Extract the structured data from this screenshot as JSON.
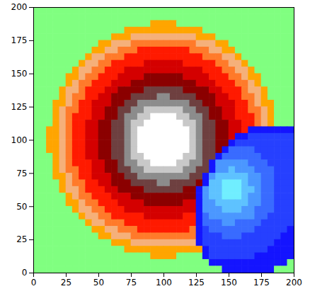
{
  "chart_data": {
    "type": "heatmap",
    "xlim": [
      0,
      200
    ],
    "ylim": [
      0,
      200
    ],
    "xticks": [
      0,
      25,
      50,
      75,
      100,
      125,
      150,
      175,
      200
    ],
    "yticks": [
      0,
      25,
      50,
      75,
      100,
      125,
      150,
      175,
      200
    ],
    "cells": [
      [
        0,
        0,
        0,
        0,
        0,
        0,
        0,
        0,
        0,
        0,
        0,
        0,
        0,
        0,
        0,
        0,
        0,
        0,
        0,
        0,
        0,
        0,
        0,
        0,
        0,
        0,
        0,
        0,
        0,
        0,
        0,
        0,
        0,
        0,
        0,
        0,
        0,
        0,
        0,
        0
      ],
      [
        0,
        0,
        0,
        0,
        0,
        0,
        0,
        0,
        0,
        0,
        0,
        0,
        0,
        0,
        0,
        0,
        0,
        0,
        0,
        0,
        0,
        0,
        0,
        0,
        0,
        0,
        0,
        0,
        0,
        0,
        0,
        0,
        0,
        0,
        0,
        0,
        0,
        0,
        0,
        0
      ],
      [
        0,
        0,
        0,
        0,
        0,
        0,
        0,
        0,
        0,
        0,
        0,
        0,
        0,
        0,
        0,
        0,
        0,
        0,
        1,
        1,
        1,
        1,
        0,
        0,
        0,
        0,
        0,
        0,
        0,
        0,
        0,
        0,
        0,
        0,
        0,
        0,
        0,
        0,
        0,
        0
      ],
      [
        0,
        0,
        0,
        0,
        0,
        0,
        0,
        0,
        0,
        0,
        0,
        0,
        0,
        0,
        1,
        1,
        1,
        1,
        1,
        1,
        1,
        1,
        1,
        1,
        1,
        1,
        0,
        0,
        0,
        0,
        0,
        0,
        0,
        0,
        0,
        0,
        0,
        0,
        0,
        0
      ],
      [
        0,
        0,
        0,
        0,
        0,
        0,
        0,
        0,
        0,
        0,
        0,
        0,
        1,
        1,
        1,
        2,
        2,
        2,
        2,
        2,
        2,
        2,
        2,
        2,
        2,
        1,
        1,
        1,
        0,
        0,
        0,
        0,
        0,
        0,
        0,
        0,
        0,
        0,
        0,
        0
      ],
      [
        0,
        0,
        0,
        0,
        0,
        0,
        0,
        0,
        0,
        0,
        1,
        1,
        2,
        2,
        2,
        3,
        3,
        3,
        3,
        3,
        3,
        3,
        3,
        3,
        3,
        2,
        2,
        2,
        1,
        1,
        0,
        0,
        0,
        0,
        0,
        0,
        0,
        0,
        0,
        0
      ],
      [
        0,
        0,
        0,
        0,
        0,
        0,
        0,
        0,
        0,
        1,
        1,
        2,
        2,
        3,
        3,
        3,
        4,
        4,
        4,
        4,
        4,
        4,
        4,
        4,
        3,
        3,
        3,
        2,
        2,
        1,
        1,
        0,
        0,
        0,
        0,
        0,
        0,
        0,
        0,
        0
      ],
      [
        0,
        0,
        0,
        0,
        0,
        0,
        0,
        0,
        1,
        2,
        2,
        3,
        3,
        3,
        4,
        4,
        4,
        4,
        4,
        4,
        4,
        4,
        4,
        4,
        4,
        4,
        3,
        3,
        3,
        2,
        2,
        1,
        0,
        0,
        0,
        0,
        0,
        0,
        0,
        0
      ],
      [
        0,
        0,
        0,
        0,
        0,
        0,
        0,
        1,
        2,
        2,
        3,
        3,
        4,
        4,
        4,
        4,
        4,
        5,
        5,
        5,
        5,
        5,
        5,
        4,
        4,
        4,
        4,
        4,
        3,
        3,
        2,
        2,
        1,
        0,
        0,
        0,
        0,
        0,
        0,
        0
      ],
      [
        0,
        0,
        0,
        0,
        0,
        0,
        1,
        2,
        2,
        3,
        3,
        4,
        4,
        4,
        5,
        5,
        5,
        5,
        5,
        5,
        5,
        5,
        5,
        5,
        5,
        5,
        4,
        4,
        4,
        3,
        3,
        2,
        2,
        1,
        0,
        0,
        0,
        0,
        0,
        0
      ],
      [
        0,
        0,
        0,
        0,
        0,
        1,
        1,
        2,
        3,
        3,
        4,
        4,
        4,
        5,
        5,
        5,
        5,
        6,
        6,
        6,
        6,
        6,
        6,
        5,
        5,
        5,
        5,
        4,
        4,
        4,
        3,
        3,
        2,
        1,
        1,
        0,
        0,
        0,
        0,
        0
      ],
      [
        0,
        0,
        0,
        0,
        0,
        1,
        2,
        3,
        3,
        4,
        4,
        4,
        5,
        5,
        5,
        6,
        6,
        6,
        6,
        6,
        6,
        6,
        6,
        6,
        6,
        5,
        5,
        5,
        4,
        4,
        4,
        3,
        3,
        2,
        1,
        0,
        0,
        0,
        0,
        0
      ],
      [
        0,
        0,
        0,
        0,
        1,
        2,
        2,
        3,
        4,
        4,
        4,
        5,
        5,
        6,
        6,
        6,
        6,
        7,
        7,
        7,
        7,
        7,
        7,
        6,
        6,
        6,
        6,
        5,
        5,
        4,
        4,
        4,
        3,
        2,
        2,
        1,
        0,
        0,
        0,
        0
      ],
      [
        0,
        0,
        0,
        0,
        1,
        2,
        3,
        3,
        4,
        4,
        5,
        5,
        6,
        6,
        6,
        7,
        7,
        7,
        7,
        8,
        8,
        7,
        7,
        7,
        7,
        6,
        6,
        6,
        5,
        5,
        4,
        4,
        3,
        3,
        2,
        1,
        0,
        0,
        0,
        0
      ],
      [
        0,
        0,
        0,
        1,
        1,
        2,
        3,
        4,
        4,
        5,
        5,
        5,
        6,
        6,
        7,
        7,
        8,
        8,
        8,
        8,
        8,
        8,
        8,
        8,
        7,
        7,
        6,
        6,
        5,
        5,
        5,
        4,
        4,
        3,
        2,
        1,
        1,
        0,
        0,
        0
      ],
      [
        0,
        0,
        0,
        1,
        2,
        3,
        3,
        4,
        4,
        5,
        5,
        6,
        6,
        7,
        7,
        8,
        8,
        9,
        9,
        9,
        9,
        9,
        9,
        8,
        8,
        7,
        7,
        6,
        6,
        5,
        5,
        4,
        4,
        3,
        3,
        2,
        1,
        0,
        0,
        0
      ],
      [
        0,
        0,
        0,
        1,
        2,
        3,
        4,
        4,
        4,
        5,
        5,
        6,
        6,
        7,
        8,
        8,
        9,
        9,
        10,
        10,
        10,
        10,
        9,
        9,
        8,
        8,
        7,
        6,
        6,
        5,
        5,
        4,
        4,
        4,
        3,
        2,
        1,
        0,
        0,
        0
      ],
      [
        0,
        0,
        0,
        1,
        2,
        3,
        4,
        4,
        5,
        5,
        6,
        6,
        7,
        7,
        8,
        9,
        9,
        10,
        10,
        10,
        10,
        10,
        10,
        9,
        9,
        8,
        7,
        7,
        6,
        6,
        5,
        5,
        4,
        4,
        3,
        2,
        1,
        0,
        0,
        0
      ],
      [
        0,
        0,
        1,
        1,
        2,
        3,
        4,
        4,
        5,
        5,
        6,
        6,
        7,
        7,
        8,
        9,
        10,
        10,
        10,
        10,
        10,
        10,
        10,
        10,
        9,
        8,
        7,
        7,
        6,
        6,
        5,
        5,
        4,
        -1,
        -1,
        -1,
        -1,
        -1,
        -1,
        -1
      ],
      [
        0,
        0,
        1,
        1,
        2,
        3,
        4,
        4,
        5,
        5,
        6,
        6,
        7,
        7,
        8,
        9,
        10,
        10,
        10,
        10,
        10,
        10,
        10,
        10,
        9,
        8,
        7,
        7,
        6,
        6,
        5,
        -1,
        -1,
        -2,
        -2,
        -2,
        -2,
        -2,
        -2,
        -2
      ],
      [
        0,
        0,
        1,
        1,
        2,
        3,
        4,
        4,
        5,
        5,
        6,
        6,
        7,
        7,
        8,
        9,
        10,
        10,
        10,
        10,
        10,
        10,
        10,
        10,
        9,
        8,
        7,
        7,
        6,
        6,
        -1,
        -2,
        -2,
        -2,
        -2,
        -2,
        -2,
        -2,
        -2,
        -2
      ],
      [
        0,
        0,
        1,
        1,
        2,
        3,
        4,
        4,
        5,
        5,
        6,
        6,
        7,
        7,
        8,
        9,
        10,
        10,
        10,
        10,
        10,
        10,
        10,
        10,
        9,
        8,
        7,
        7,
        6,
        -1,
        -3,
        -3,
        -3,
        -3,
        -2,
        -2,
        -2,
        -2,
        -2,
        -2
      ],
      [
        0,
        0,
        0,
        1,
        2,
        3,
        4,
        4,
        5,
        5,
        6,
        6,
        7,
        7,
        8,
        9,
        9,
        10,
        10,
        10,
        10,
        10,
        10,
        9,
        9,
        8,
        7,
        7,
        -1,
        -3,
        -3,
        -3,
        -3,
        -3,
        -3,
        -2,
        -2,
        -2,
        -2,
        -2
      ],
      [
        0,
        0,
        0,
        1,
        2,
        3,
        4,
        4,
        4,
        5,
        5,
        6,
        6,
        7,
        8,
        8,
        9,
        9,
        10,
        10,
        10,
        10,
        9,
        9,
        8,
        8,
        7,
        -1,
        -4,
        -4,
        -4,
        -4,
        -4,
        -3,
        -3,
        -3,
        -2,
        -2,
        -2,
        -2
      ],
      [
        0,
        0,
        0,
        1,
        2,
        3,
        3,
        4,
        4,
        5,
        5,
        6,
        6,
        7,
        7,
        8,
        8,
        9,
        9,
        9,
        9,
        9,
        9,
        8,
        8,
        7,
        7,
        -1,
        -4,
        -4,
        -5,
        -4,
        -4,
        -4,
        -3,
        -3,
        -3,
        -2,
        -2,
        -2
      ],
      [
        0,
        0,
        0,
        1,
        1,
        2,
        3,
        4,
        4,
        5,
        5,
        5,
        6,
        6,
        7,
        7,
        8,
        8,
        8,
        8,
        8,
        8,
        8,
        8,
        7,
        7,
        -1,
        -4,
        -5,
        -5,
        -5,
        -5,
        -5,
        -4,
        -4,
        -3,
        -3,
        -2,
        -2,
        -2
      ],
      [
        0,
        0,
        0,
        0,
        1,
        2,
        3,
        3,
        4,
        4,
        5,
        5,
        6,
        6,
        6,
        7,
        7,
        7,
        7,
        8,
        8,
        7,
        7,
        7,
        7,
        6,
        -1,
        -5,
        -5,
        -6,
        -6,
        -6,
        -5,
        -4,
        -4,
        -3,
        -3,
        -2,
        -2,
        -2
      ],
      [
        0,
        0,
        0,
        0,
        1,
        2,
        2,
        3,
        4,
        4,
        4,
        5,
        5,
        6,
        6,
        6,
        6,
        7,
        7,
        7,
        7,
        7,
        7,
        6,
        6,
        -1,
        -4,
        -5,
        -5,
        -6,
        -6,
        -6,
        -5,
        -5,
        -4,
        -3,
        -3,
        -2,
        -2,
        -2
      ],
      [
        0,
        0,
        0,
        0,
        0,
        1,
        2,
        3,
        3,
        4,
        4,
        4,
        5,
        5,
        5,
        6,
        6,
        6,
        6,
        6,
        6,
        6,
        6,
        6,
        6,
        -1,
        -4,
        -5,
        -5,
        -6,
        -6,
        -6,
        -5,
        -4,
        -4,
        -3,
        -3,
        -2,
        -2,
        -2
      ],
      [
        0,
        0,
        0,
        0,
        0,
        1,
        1,
        2,
        3,
        3,
        4,
        4,
        4,
        5,
        5,
        5,
        5,
        6,
        6,
        6,
        6,
        6,
        6,
        5,
        5,
        -1,
        -4,
        -4,
        -5,
        -5,
        -5,
        -5,
        -5,
        -4,
        -4,
        -3,
        -3,
        -2,
        -2,
        -2
      ],
      [
        0,
        0,
        0,
        0,
        0,
        0,
        1,
        2,
        2,
        3,
        3,
        4,
        4,
        4,
        5,
        5,
        5,
        5,
        5,
        5,
        5,
        5,
        5,
        5,
        5,
        -1,
        -4,
        -4,
        -4,
        -5,
        -5,
        -5,
        -4,
        -4,
        -3,
        -3,
        -3,
        -2,
        -2,
        -2
      ],
      [
        0,
        0,
        0,
        0,
        0,
        0,
        0,
        1,
        2,
        2,
        3,
        3,
        4,
        4,
        4,
        4,
        4,
        5,
        5,
        5,
        5,
        5,
        5,
        4,
        4,
        -1,
        -3,
        -4,
        -4,
        -4,
        -4,
        -4,
        -4,
        -4,
        -3,
        -3,
        -2,
        -2,
        -2,
        -2
      ],
      [
        0,
        0,
        0,
        0,
        0,
        0,
        0,
        0,
        1,
        2,
        2,
        3,
        3,
        3,
        4,
        4,
        4,
        4,
        4,
        4,
        4,
        4,
        4,
        4,
        4,
        -1,
        -3,
        -3,
        -3,
        -4,
        -4,
        -3,
        -3,
        -3,
        -3,
        -2,
        -2,
        -2,
        -2,
        -2
      ],
      [
        0,
        0,
        0,
        0,
        0,
        0,
        0,
        0,
        0,
        1,
        1,
        2,
        2,
        3,
        3,
        3,
        4,
        4,
        4,
        4,
        4,
        4,
        4,
        4,
        3,
        -1,
        -2,
        -3,
        -3,
        -3,
        -3,
        -3,
        -3,
        -3,
        -2,
        -2,
        -2,
        -2,
        -2,
        -1
      ],
      [
        0,
        0,
        0,
        0,
        0,
        0,
        0,
        0,
        0,
        0,
        1,
        1,
        2,
        2,
        2,
        3,
        3,
        3,
        3,
        3,
        3,
        3,
        3,
        3,
        3,
        -1,
        -2,
        -2,
        -2,
        -3,
        -3,
        -3,
        -2,
        -2,
        -2,
        -2,
        -2,
        -2,
        -1,
        -1
      ],
      [
        0,
        0,
        0,
        0,
        0,
        0,
        0,
        0,
        0,
        0,
        0,
        0,
        1,
        1,
        1,
        2,
        2,
        2,
        2,
        2,
        2,
        2,
        2,
        2,
        2,
        -1,
        -2,
        -2,
        -2,
        -2,
        -2,
        -2,
        -2,
        -2,
        -2,
        -2,
        -2,
        -1,
        -1,
        -1
      ],
      [
        0,
        0,
        0,
        0,
        0,
        0,
        0,
        0,
        0,
        0,
        0,
        0,
        0,
        0,
        1,
        1,
        1,
        1,
        1,
        1,
        1,
        1,
        1,
        1,
        1,
        1,
        -1,
        -2,
        -2,
        -2,
        -2,
        -2,
        -2,
        -2,
        -2,
        -2,
        -1,
        -1,
        -1,
        -1
      ],
      [
        0,
        0,
        0,
        0,
        0,
        0,
        0,
        0,
        0,
        0,
        0,
        0,
        0,
        0,
        0,
        0,
        0,
        0,
        1,
        1,
        1,
        1,
        0,
        0,
        0,
        0,
        -1,
        -2,
        -2,
        -2,
        -2,
        -2,
        -2,
        -2,
        -1,
        -1,
        -1,
        -1,
        -1,
        -1
      ],
      [
        0,
        0,
        0,
        0,
        0,
        0,
        0,
        0,
        0,
        0,
        0,
        0,
        0,
        0,
        0,
        0,
        0,
        0,
        0,
        0,
        0,
        0,
        0,
        0,
        0,
        0,
        0,
        -1,
        -1,
        -1,
        -1,
        -1,
        -1,
        -1,
        -1,
        -1,
        -1,
        -1,
        -1,
        0
      ],
      [
        0,
        0,
        0,
        0,
        0,
        0,
        0,
        0,
        0,
        0,
        0,
        0,
        0,
        0,
        0,
        0,
        0,
        0,
        0,
        0,
        0,
        0,
        0,
        0,
        0,
        0,
        0,
        0,
        0,
        -1,
        -1,
        -1,
        -1,
        -1,
        -1,
        -1,
        -1,
        0,
        0,
        0
      ]
    ]
  }
}
